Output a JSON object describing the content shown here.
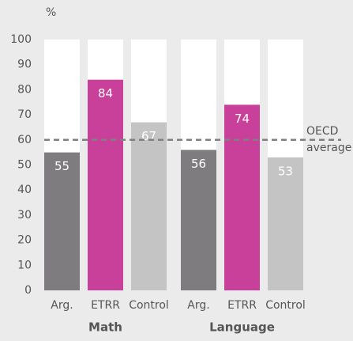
{
  "chart_data": {
    "type": "bar",
    "y_label": "%",
    "categories": [
      "Math",
      "Language"
    ],
    "series": [
      {
        "name": "Arg.",
        "color": "#7f7c80",
        "values": [
          55,
          56
        ]
      },
      {
        "name": "ETRR",
        "color": "#c8409a",
        "values": [
          84,
          74
        ]
      },
      {
        "name": "Control",
        "color": "#c4c4c4",
        "values": [
          67,
          53
        ]
      }
    ],
    "ylim": [
      0,
      100
    ],
    "yticks": [
      0,
      10,
      20,
      30,
      40,
      50,
      60,
      70,
      80,
      90,
      100
    ],
    "reference_line": {
      "value": 60,
      "label_lines": [
        "OECD",
        "average"
      ],
      "color": "#808080"
    }
  }
}
